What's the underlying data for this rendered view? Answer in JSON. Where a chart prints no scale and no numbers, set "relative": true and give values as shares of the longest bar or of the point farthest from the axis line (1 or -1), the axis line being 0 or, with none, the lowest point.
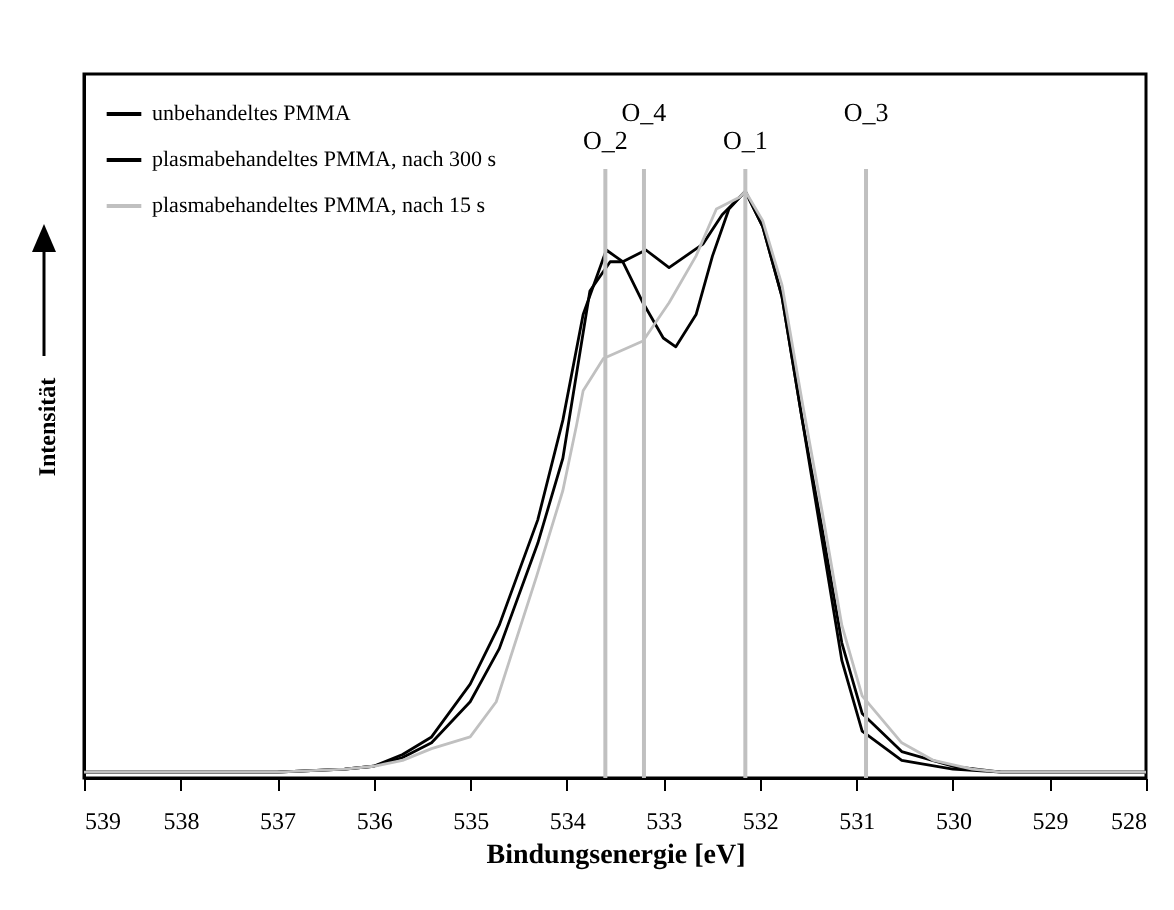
{
  "chart_data": {
    "type": "line",
    "relative": true,
    "xlabel": "Bindungsenergie [eV]",
    "ylabel": "Intensität",
    "xlim": [
      539,
      528
    ],
    "xticks": [
      539,
      538,
      537,
      536,
      535,
      534,
      533,
      532,
      531,
      530,
      529,
      528
    ],
    "grid": false,
    "legend": "top left",
    "line_style": "solid",
    "series": [
      {
        "name": "unbehandeltes PMMA",
        "color": "#000000",
        "x": [
          539,
          538,
          537,
          536.3,
          536,
          535.7,
          535.4,
          535.0,
          534.7,
          534.3,
          534.04,
          533.76,
          533.55,
          533.42,
          533.21,
          533.0,
          532.87,
          532.66,
          532.49,
          532.32,
          532.15,
          531.97,
          531.77,
          531.56,
          531.35,
          531.15,
          530.94,
          530.53,
          530.0,
          529.5,
          529,
          528
        ],
        "values": [
          0.01,
          0.01,
          0.01,
          0.015,
          0.02,
          0.035,
          0.06,
          0.13,
          0.22,
          0.4,
          0.545,
          0.83,
          0.88,
          0.88,
          0.81,
          0.75,
          0.735,
          0.79,
          0.89,
          0.97,
          1.0,
          0.94,
          0.82,
          0.61,
          0.4,
          0.2,
          0.08,
          0.03,
          0.015,
          0.01,
          0.01,
          0.01
        ]
      },
      {
        "name": "plasmabehandeltes PMMA, nach 300 s",
        "color": "#000000",
        "x": [
          539,
          538,
          537,
          536.3,
          536,
          535.7,
          535.4,
          535.0,
          534.7,
          534.3,
          534.04,
          533.83,
          533.59,
          533.42,
          533.18,
          532.94,
          532.59,
          532.39,
          532.21,
          532.15,
          531.97,
          531.77,
          531.56,
          531.35,
          531.15,
          530.94,
          530.53,
          530.0,
          529.5,
          529,
          528
        ],
        "values": [
          0.01,
          0.01,
          0.01,
          0.015,
          0.02,
          0.04,
          0.07,
          0.16,
          0.26,
          0.44,
          0.61,
          0.79,
          0.9,
          0.88,
          0.9,
          0.87,
          0.91,
          0.96,
          0.99,
          1.0,
          0.94,
          0.82,
          0.61,
          0.42,
          0.23,
          0.11,
          0.045,
          0.02,
          0.01,
          0.01,
          0.01
        ]
      },
      {
        "name": "plasmabehandeltes PMMA, nach 15 s",
        "color": "#c0c0c0",
        "x": [
          539,
          538,
          537,
          536.3,
          536,
          535.7,
          535.4,
          535.0,
          534.73,
          534.31,
          534.04,
          533.9,
          533.83,
          533.62,
          533.21,
          532.94,
          532.66,
          532.45,
          532.21,
          532.15,
          531.97,
          531.77,
          531.56,
          531.35,
          531.15,
          530.94,
          530.53,
          530.2,
          529.8,
          529.5,
          529,
          528
        ],
        "values": [
          0.01,
          0.01,
          0.01,
          0.015,
          0.02,
          0.03,
          0.05,
          0.07,
          0.13,
          0.345,
          0.49,
          0.6,
          0.66,
          0.715,
          0.745,
          0.81,
          0.89,
          0.97,
          0.99,
          1.0,
          0.95,
          0.84,
          0.64,
          0.45,
          0.26,
          0.14,
          0.06,
          0.03,
          0.015,
          0.01,
          0.01,
          0.01
        ]
      }
    ],
    "ref_lines": [
      {
        "axis": "x",
        "value": 533.6,
        "label": "O_2",
        "color": "#c0c0c0"
      },
      {
        "axis": "x",
        "value": 533.2,
        "label": "O_4",
        "color": "#c0c0c0"
      },
      {
        "axis": "x",
        "value": 532.15,
        "label": "O_1",
        "color": "#c0c0c0"
      },
      {
        "axis": "x",
        "value": 530.9,
        "label": "O_3",
        "color": "#c0c0c0"
      }
    ]
  }
}
